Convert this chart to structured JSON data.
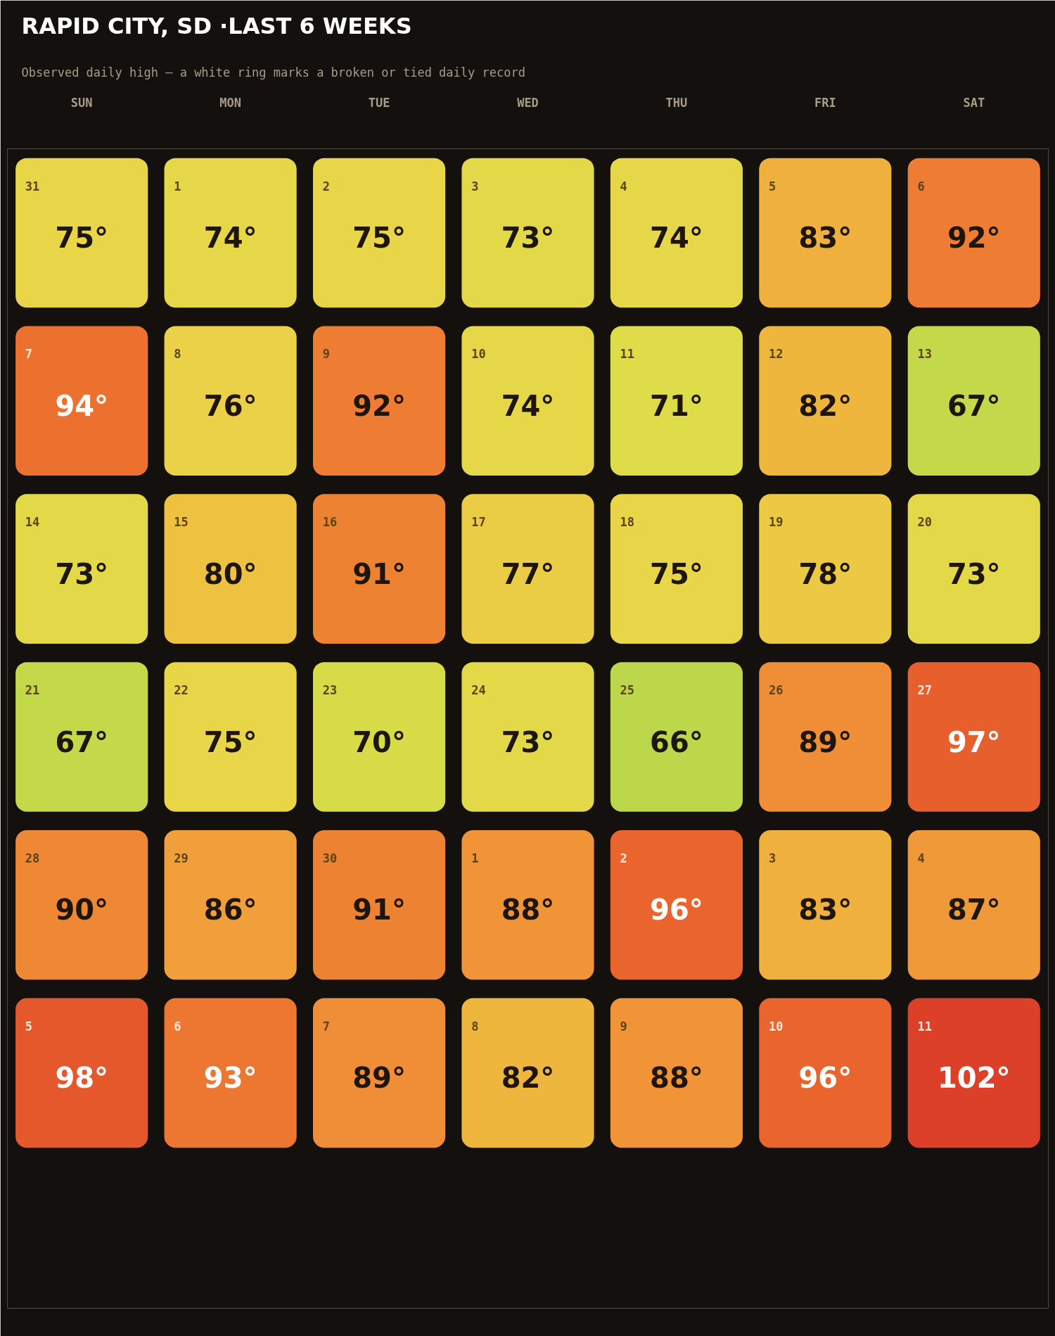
{
  "chart_data": {
    "type": "heatmap",
    "title": "RAPID CITY, SD ·LAST 6 WEEKS",
    "subtitle": "Observed daily high — a white ring marks a broken or tied daily record",
    "categories": [
      "SUN",
      "MON",
      "TUE",
      "WED",
      "THU",
      "FRI",
      "SAT"
    ],
    "y_categories": [
      null,
      null,
      null,
      null,
      null,
      null
    ],
    "cells": [
      [
        75,
        74,
        75,
        73,
        74,
        83,
        92
      ],
      [
        94,
        76,
        92,
        74,
        71,
        82,
        67
      ],
      [
        73,
        80,
        91,
        77,
        75,
        78,
        73
      ],
      [
        67,
        75,
        70,
        73,
        66,
        89,
        97
      ],
      [
        90,
        86,
        91,
        88,
        96,
        83,
        87
      ],
      [
        98,
        93,
        89,
        82,
        88,
        96,
        102
      ]
    ],
    "cell_labels": [
      [
        "75°",
        "74°",
        "75°",
        "73°",
        "74°",
        "83°",
        "92°"
      ],
      [
        "94°",
        "76°",
        "92°",
        "74°",
        "71°",
        "82°",
        "67°"
      ],
      [
        "73°",
        "80°",
        "91°",
        "77°",
        "75°",
        "78°",
        "73°"
      ],
      [
        "67°",
        "75°",
        "70°",
        "73°",
        "66°",
        "89°",
        "97°"
      ],
      [
        "90°",
        "86°",
        "91°",
        "88°",
        "96°",
        "83°",
        "87°"
      ],
      [
        "98°",
        "93°",
        "89°",
        "82°",
        "88°",
        "96°",
        "102°"
      ]
    ],
    "annotations": [
      "31",
      "1",
      "2",
      "3",
      "4",
      "5",
      "6",
      "7",
      "8",
      "9",
      "10",
      "11",
      "12",
      "13",
      "14",
      "15",
      "16",
      "17",
      "18",
      "19",
      "20",
      "21",
      "22",
      "23",
      "24",
      "25",
      "26",
      "27",
      "28",
      "29",
      "30",
      "1",
      "2",
      "3",
      "4",
      "5",
      "6",
      "7",
      "8",
      "9",
      "10",
      "11"
    ]
  }
}
